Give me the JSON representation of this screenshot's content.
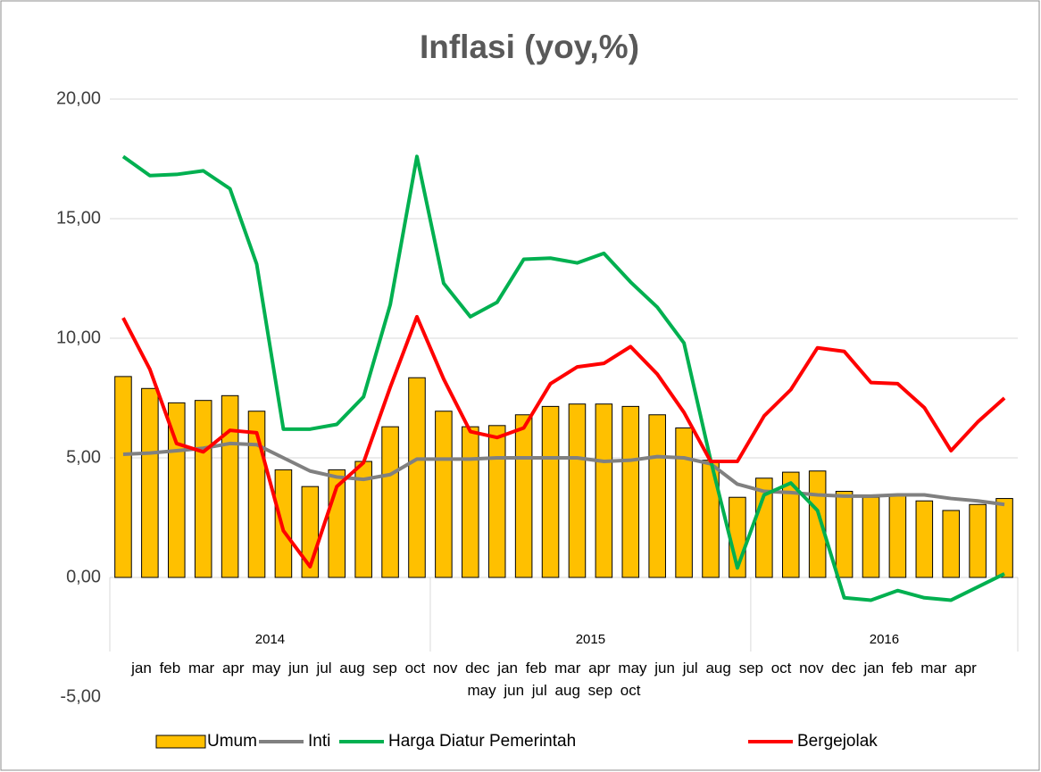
{
  "chart_data": {
    "type": "bar",
    "title": "Inflasi (yoy,%)",
    "category_groups": [
      {
        "label": "2014",
        "categories": [
          "jan",
          "feb",
          "mar",
          "apr",
          "may",
          "jun",
          "jul",
          "aug",
          "sep",
          "oct",
          "nov",
          "dec"
        ]
      },
      {
        "label": "2015",
        "categories": [
          "jan",
          "feb",
          "mar",
          "apr",
          "may",
          "jun",
          "jul",
          "aug",
          "sep",
          "oct",
          "nov",
          "dec"
        ]
      },
      {
        "label": "2016",
        "categories": [
          "jan",
          "feb",
          "mar",
          "apr",
          "may",
          "jun",
          "jul",
          "aug",
          "sep",
          "oct"
        ]
      }
    ],
    "series": [
      {
        "name": "Umum",
        "type": "bar",
        "color": "#ffc000",
        "values": [
          8.4,
          7.9,
          7.3,
          7.4,
          7.6,
          6.95,
          4.5,
          3.8,
          4.5,
          4.85,
          6.3,
          8.35,
          6.95,
          6.3,
          6.35,
          6.8,
          7.15,
          7.25,
          7.25,
          7.15,
          6.8,
          6.25,
          4.9,
          3.35,
          4.15,
          4.4,
          4.45,
          3.6,
          3.35,
          3.45,
          3.2,
          2.8,
          3.05,
          3.3
        ]
      },
      {
        "name": "Inti",
        "type": "line",
        "color": "#808080",
        "values": [
          5.15,
          5.2,
          5.3,
          5.4,
          5.6,
          5.55,
          5.0,
          4.45,
          4.2,
          4.1,
          4.3,
          4.95,
          4.95,
          4.95,
          5.0,
          5.0,
          5.0,
          5.0,
          4.85,
          4.9,
          5.05,
          5.0,
          4.75,
          3.9,
          3.6,
          3.55,
          3.45,
          3.4,
          3.4,
          3.45,
          3.45,
          3.3,
          3.2,
          3.05
        ]
      },
      {
        "name": "Harga Diatur Pemerintah",
        "type": "line",
        "color": "#00b050",
        "values": [
          17.6,
          16.8,
          16.85,
          17.0,
          16.25,
          13.1,
          6.2,
          6.2,
          6.4,
          7.55,
          11.4,
          17.6,
          12.3,
          10.9,
          11.5,
          13.3,
          13.35,
          13.15,
          13.55,
          12.35,
          11.3,
          9.8,
          4.9,
          0.4,
          3.45,
          3.95,
          2.8,
          -0.85,
          -0.95,
          -0.55,
          -0.85,
          -0.95,
          -0.4,
          0.15
        ]
      },
      {
        "name": "Bergejolak",
        "type": "line",
        "color": "#ff0000",
        "values": [
          10.85,
          8.7,
          5.6,
          5.25,
          6.15,
          6.05,
          1.95,
          0.45,
          3.8,
          4.8,
          7.95,
          10.9,
          8.3,
          6.1,
          5.85,
          6.25,
          8.1,
          8.8,
          8.95,
          9.65,
          8.5,
          6.9,
          4.85,
          4.85,
          6.75,
          7.85,
          9.6,
          9.45,
          8.15,
          8.1,
          7.1,
          5.3,
          6.5,
          7.5
        ]
      }
    ],
    "ylim": [
      -5,
      20
    ],
    "yticks": [
      {
        "value": -5,
        "label": "-5,00"
      },
      {
        "value": 0,
        "label": "0,00"
      },
      {
        "value": 5,
        "label": "5,00"
      },
      {
        "value": 10,
        "label": "10,00"
      },
      {
        "value": 15,
        "label": "15,00"
      },
      {
        "value": 20,
        "label": "20,00"
      }
    ],
    "grid": true,
    "legend": "bottom"
  }
}
